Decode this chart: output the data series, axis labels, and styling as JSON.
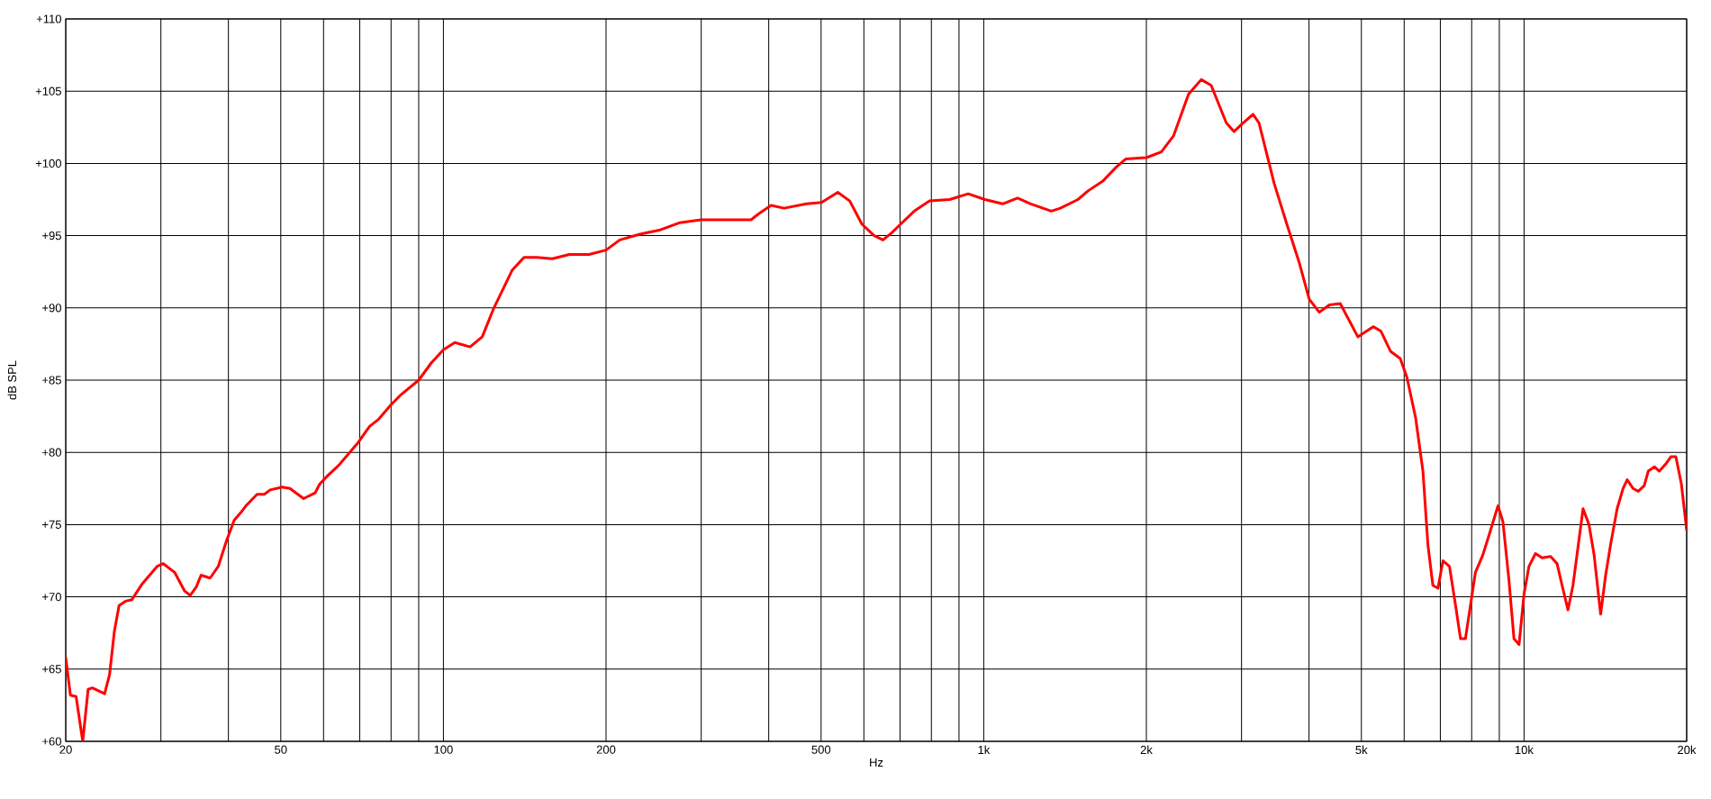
{
  "chart_data": {
    "type": "line",
    "xlabel": "Hz",
    "ylabel": "dB SPL",
    "log": "x",
    "grid": true,
    "marker": "none",
    "line_style": "solid",
    "xlim": [
      20,
      20000
    ],
    "ylim": [
      60,
      110
    ],
    "xticks": [
      20,
      {
        "value": 30,
        "label": null
      },
      {
        "value": 40,
        "label": null
      },
      50,
      {
        "value": 60,
        "label": null
      },
      {
        "value": 70,
        "label": null
      },
      {
        "value": 80,
        "label": null
      },
      {
        "value": 90,
        "label": null
      },
      100,
      200,
      {
        "value": 300,
        "label": null
      },
      {
        "value": 400,
        "label": null
      },
      500,
      {
        "value": 600,
        "label": null
      },
      {
        "value": 700,
        "label": null
      },
      {
        "value": 800,
        "label": null
      },
      {
        "value": 900,
        "label": null
      },
      {
        "value": 1000,
        "label": "1k"
      },
      {
        "value": 2000,
        "label": "2k"
      },
      {
        "value": 3000,
        "label": null
      },
      {
        "value": 4000,
        "label": null
      },
      {
        "value": 5000,
        "label": "5k"
      },
      {
        "value": 6000,
        "label": null
      },
      {
        "value": 7000,
        "label": null
      },
      {
        "value": 8000,
        "label": null
      },
      {
        "value": 9000,
        "label": null
      },
      {
        "value": 10000,
        "label": "10k"
      },
      {
        "value": 20000,
        "label": "20k"
      }
    ],
    "yticks": [
      {
        "value": 60,
        "label": "+60"
      },
      {
        "value": 65,
        "label": "+65"
      },
      {
        "value": 70,
        "label": "+70"
      },
      {
        "value": 75,
        "label": "+75"
      },
      {
        "value": 80,
        "label": "+80"
      },
      {
        "value": 85,
        "label": "+85"
      },
      {
        "value": 90,
        "label": "+90"
      },
      {
        "value": 95,
        "label": "+95"
      },
      {
        "value": 100,
        "label": "+100"
      },
      {
        "value": 105,
        "label": "+105"
      },
      {
        "value": 110,
        "label": "+110"
      }
    ],
    "series": [
      {
        "color": "#ff0000",
        "x": [
          20,
          20.4,
          20.9,
          21.5,
          22.0,
          22.4,
          23.6,
          24.1,
          24.6,
          25.1,
          25.8,
          26.5,
          27.7,
          29.5,
          30.3,
          31.8,
          33.2,
          34.0,
          34.9,
          35.6,
          37.0,
          38.3,
          39.7,
          41.0,
          42.1,
          43.1,
          45.2,
          46.6,
          47.8,
          50.3,
          52.0,
          55.1,
          57.9,
          59.0,
          61.1,
          64,
          69.6,
          73,
          75.9,
          80,
          83.5,
          90,
          95,
          100,
          105,
          112,
          118,
          124,
          134,
          141,
          149,
          159,
          171,
          186,
          200,
          212,
          231,
          252,
          274,
          300,
          334,
          371,
          383,
          404,
          427,
          470,
          501,
          537,
          565,
          595,
          627,
          651,
          676,
          702,
          744,
          794,
          865,
          936,
          1005,
          1084,
          1155,
          1222,
          1334,
          1386,
          1494,
          1560,
          1664,
          1754,
          1831,
          2000,
          2132,
          2245,
          2394,
          2527,
          2636,
          2812,
          2905,
          3000,
          3151,
          3232,
          3449,
          3639,
          3839,
          4003,
          4178,
          4363,
          4569,
          4720,
          4925,
          5258,
          5431,
          5660,
          5900,
          6070,
          6300,
          6500,
          6640,
          6780,
          6930,
          7080,
          7280,
          7470,
          7630,
          7790,
          8130,
          8390,
          8670,
          8950,
          9140,
          9380,
          9580,
          9790,
          10000,
          10210,
          10500,
          10800,
          11200,
          11510,
          11760,
          12060,
          12320,
          12860,
          13190,
          13480,
          13860,
          14160,
          14460,
          14870,
          15250,
          15520,
          15920,
          16270,
          16690,
          16980,
          17430,
          17800,
          18300,
          18700,
          19100,
          19560,
          20000
        ],
        "values": [
          65.8,
          63.2,
          63.1,
          60.0,
          63.6,
          63.7,
          63.3,
          64.6,
          67.6,
          69.4,
          69.7,
          69.8,
          70.9,
          72.1,
          72.3,
          71.7,
          70.4,
          70.1,
          70.7,
          71.5,
          71.3,
          72.1,
          73.9,
          75.3,
          75.8,
          76.3,
          77.1,
          77.1,
          77.4,
          77.6,
          77.5,
          76.8,
          77.2,
          77.8,
          78.4,
          79.1,
          80.7,
          81.8,
          82.3,
          83.3,
          84.0,
          85.0,
          86.2,
          87.1,
          87.6,
          87.3,
          88.0,
          90.0,
          92.6,
          93.5,
          93.5,
          93.4,
          93.7,
          93.7,
          94.0,
          94.7,
          95.1,
          95.4,
          95.9,
          96.1,
          96.1,
          96.1,
          96.5,
          97.1,
          96.9,
          97.2,
          97.3,
          98.0,
          97.4,
          95.8,
          95.0,
          94.7,
          95.2,
          95.8,
          96.7,
          97.4,
          97.5,
          97.9,
          97.5,
          97.2,
          97.6,
          97.2,
          96.7,
          96.9,
          97.5,
          98.1,
          98.8,
          99.7,
          100.3,
          100.4,
          100.8,
          101.9,
          104.8,
          105.8,
          105.4,
          102.8,
          102.2,
          102.7,
          103.4,
          102.8,
          98.6,
          95.8,
          93.1,
          90.6,
          89.7,
          90.2,
          90.3,
          89.3,
          88.0,
          88.7,
          88.4,
          87.0,
          86.5,
          85.2,
          82.4,
          78.7,
          73.6,
          70.8,
          70.6,
          72.5,
          72.1,
          69.4,
          67.1,
          67.1,
          71.7,
          72.9,
          74.6,
          76.3,
          75.2,
          71.1,
          67.1,
          66.7,
          70.2,
          72.1,
          73.0,
          72.7,
          72.8,
          72.3,
          70.8,
          69.1,
          70.8,
          76.1,
          75.0,
          72.9,
          68.8,
          71.5,
          73.6,
          76.1,
          77.5,
          78.1,
          77.5,
          77.3,
          77.7,
          78.7,
          79.0,
          78.7,
          79.2,
          79.7,
          79.7,
          77.8,
          74.6
        ]
      }
    ]
  }
}
